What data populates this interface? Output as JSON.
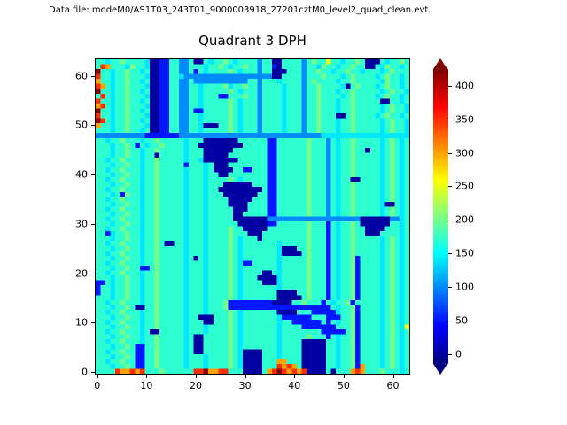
{
  "header": {
    "datafile": "Data file: modeM0/AS1T03_243T01_9000003918_27201cztM0_level2_quad_clean.evt"
  },
  "chart_data": {
    "type": "heatmap",
    "title": "Quadrant 3 DPH",
    "xlabel": "",
    "ylabel": "",
    "grid_size": 64,
    "colormap": "jet",
    "vmin": -15,
    "vmax": 425,
    "x_ticks": [
      0,
      10,
      20,
      30,
      40,
      50,
      60
    ],
    "y_ticks": [
      0,
      10,
      20,
      30,
      40,
      50,
      60
    ],
    "colorbar_ticks": [
      0,
      50,
      100,
      150,
      200,
      250,
      300,
      350,
      400
    ],
    "colorbar_extend": "both",
    "over_color": "#7f0000",
    "under_color": "#00007f",
    "value_buckets": {
      "0": 0,
      "1": 50,
      "2": 100,
      "3": 140,
      "4": 170,
      "5": 200,
      "6": 250,
      "7": 300,
      "8": 350,
      "9": 420
    },
    "rows_top_to_bottom": [
      "4434454444300114422400434454344442440044442454464434454000434454",
      "4874443544300114422444344543445442441044442443544344544004354434",
      "9443445443400114422414344445434442440004442445443445443444345444",
      "8443445444300114432222222222222222220044442444544434544443454434",
      "7443445443400114422422222222222442444344442454444344544444354434",
      "8743445444300114422443444453445442444434442445444430454443454434",
      "9443445443400114422443444445434442444434442445444344544444345443",
      "4843445444300114422443444114445442444434442445444434544443454434",
      "8443445443400114422443444445434442444434442445444344544444004434",
      "7843445444300114422443444445434442444434442445444344544444345443",
      "9443445443400114422411444445434442444434442445444344544444345443",
      "8443445444300114422443444445434442444434442445444004544443454434",
      "9843445443400114422443444445434442444434442445444344544444345443",
      "7443445444300114422443000445434442444434442445444344544444345443",
      "4443445443400114422443444445434442444434442445444344544444345443",
      "2222222222111111122222222222222222222222222222333333333333333333",
      "4434454443445444443444000000044444411444444544424344544444345434",
      "4443445414344544443440000000004444411444444544424344544444345434",
      "4443445443445444443444000000444444411444444544424344544044345434",
      "4443445443440444443444000004444444411444444544424344544444345434",
      "4434454443445444443443000000044444411444444544424344544444345434",
      "4443445443445444441444340004444444411444444544424344544444345434",
      "4434454443445444443444340000441144411444444544424344544444345434",
      "4443445443445444443444344004444444411444444544424344544444345434",
      "4434454443445444443444344445434444411444444544424344004444345434",
      "4443445443445444443444344400000044411444444544424344544444345434",
      "4434454443445444443444344000000000411444444544424344544444345434",
      "4443415443445444443444344400000004411444444544424344544444345434",
      "4434454443445444443444344440000044411444444544424344544444345434",
      "4443445443445444443444344440000444411444444544424344544444300434",
      "4434454443445444443444344444000444411444444544424344544444345434",
      "4443445443445444443444344444004444411444444544424344544444345434",
      "4434454443445444443444344444000000022222222222222222220000002234",
      "4443445443445444443444344444400000011444444544414344540000004434",
      "4434454443445444443444344445440000044444444544414344544000044434",
      "4413445443445444443444344445444000444444444544414344544000444434",
      "4443445443445444443444344445434440444444444544414344544444345434",
      "4434454443445400443444344445434444444344444544414344544444345434",
      "4443445443445444443444344445434444444300044544414344544444345434",
      "4434454443445444443444344445434444444300004544414344544444345434",
      "4443445443445444443404344445434444444344444544414344514444345434",
      "4434454443445444443444344445431144444344444544414344514444345434",
      "4443445441145444443444344445434444444344444544414344514444345434",
      "4434454443445444443444344445434444004344444544414344514444345434",
      "4443445443445444443444344445434440000344444544414344514444345434",
      "1143445443445444443444344445434444000344444544414344514444345434",
      "1443445443445444443444344445434444444344444544414344514444345434",
      "1443445443445444443444344445434444444000044544414344514444345434",
      "4443445443445444443444344445434444444000004544414344514444345434",
      "4434454443445444443444344451111111110000445444143445144?44345434",
      "4443445400445444443444344451111111111111111111114344514444345434",
      "4434454443445444443444344445434444444000044411111344514444345434",
      "4443445443445444443440004445434444444311111144411144514444345434",
      "4434454443445444443444004445434444444344111111414344514444345434",
      "4443445443445444443444344445434444444344441111111444514444345436",
      "4434454443400444443444344445434444444344444444111114514444345434",
      "4443445443445444443400444445434444444344444544414344514444345434",
      "4434454443445444443400444445434444444344440000044344514444345434",
      "4443445411445444443400444445434444444344440000044344514444345434",
      "4434454411445444443400444445430000444344440000044344514444345434",
      "4443445411445444443444344445430000444344440000044344514444345434",
      "4434454411445444443444344445430000444774440000044344514444345434",
      "4443445411445444443444344445430000444878740000044344517444345434",
      "4444877878444544444488977884440000478987878000040444787444544434"
    ]
  }
}
